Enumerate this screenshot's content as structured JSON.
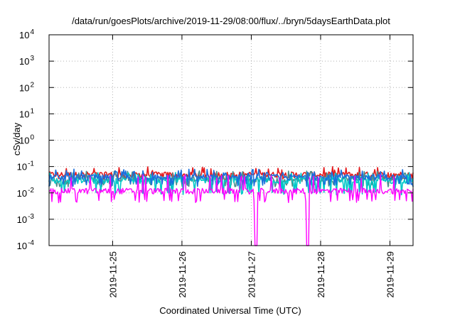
{
  "chart_data": {
    "type": "line",
    "title": "/data/run/goesPlots/archive/2019-11-29/08:00/flux/../bryn/5daysEarthData.plot",
    "xlabel": "Coordinated Universal Time (UTC)",
    "ylabel": "cSv/day",
    "x_range": [
      "2019-11-24 02:00",
      "2019-11-29 08:00"
    ],
    "x_tick_labels": [
      "2019-11-25",
      "2019-11-26",
      "2019-11-27",
      "2019-11-28",
      "2019-11-29"
    ],
    "y_scale": "log",
    "ylim": [
      0.0001,
      10000
    ],
    "y_tick_labels": [
      {
        "base": "10",
        "exp": "-4"
      },
      {
        "base": "10",
        "exp": "-3"
      },
      {
        "base": "10",
        "exp": "-2"
      },
      {
        "base": "10",
        "exp": "-1"
      },
      {
        "base": "10",
        "exp": "0"
      },
      {
        "base": "10",
        "exp": "1"
      },
      {
        "base": "10",
        "exp": "2"
      },
      {
        "base": "10",
        "exp": "3"
      },
      {
        "base": "10",
        "exp": "4"
      }
    ],
    "grid": true,
    "legend": "none",
    "series": [
      {
        "color": "#e41a1c",
        "baseline": 0.05,
        "low": 0.035,
        "high": 0.1
      },
      {
        "color": "#4b8f8c",
        "baseline": 0.035,
        "low": 0.02,
        "high": 0.07
      },
      {
        "color": "#00c8c8",
        "baseline": 0.03,
        "low": 0.01,
        "high": 0.06
      },
      {
        "color": "#1a6fdc",
        "baseline": 0.04,
        "low": 0.02,
        "high": 0.08
      },
      {
        "color": "#ff00ff",
        "baseline": 0.012,
        "low": 0.005,
        "high": 0.05,
        "dropouts": [
          {
            "start": "2019-11-27 01:00",
            "end": "2019-11-27 02:00",
            "value": 0.0001
          },
          {
            "start": "2019-11-27 19:00",
            "end": "2019-11-27 20:00",
            "value": 0.0001
          }
        ]
      }
    ]
  }
}
